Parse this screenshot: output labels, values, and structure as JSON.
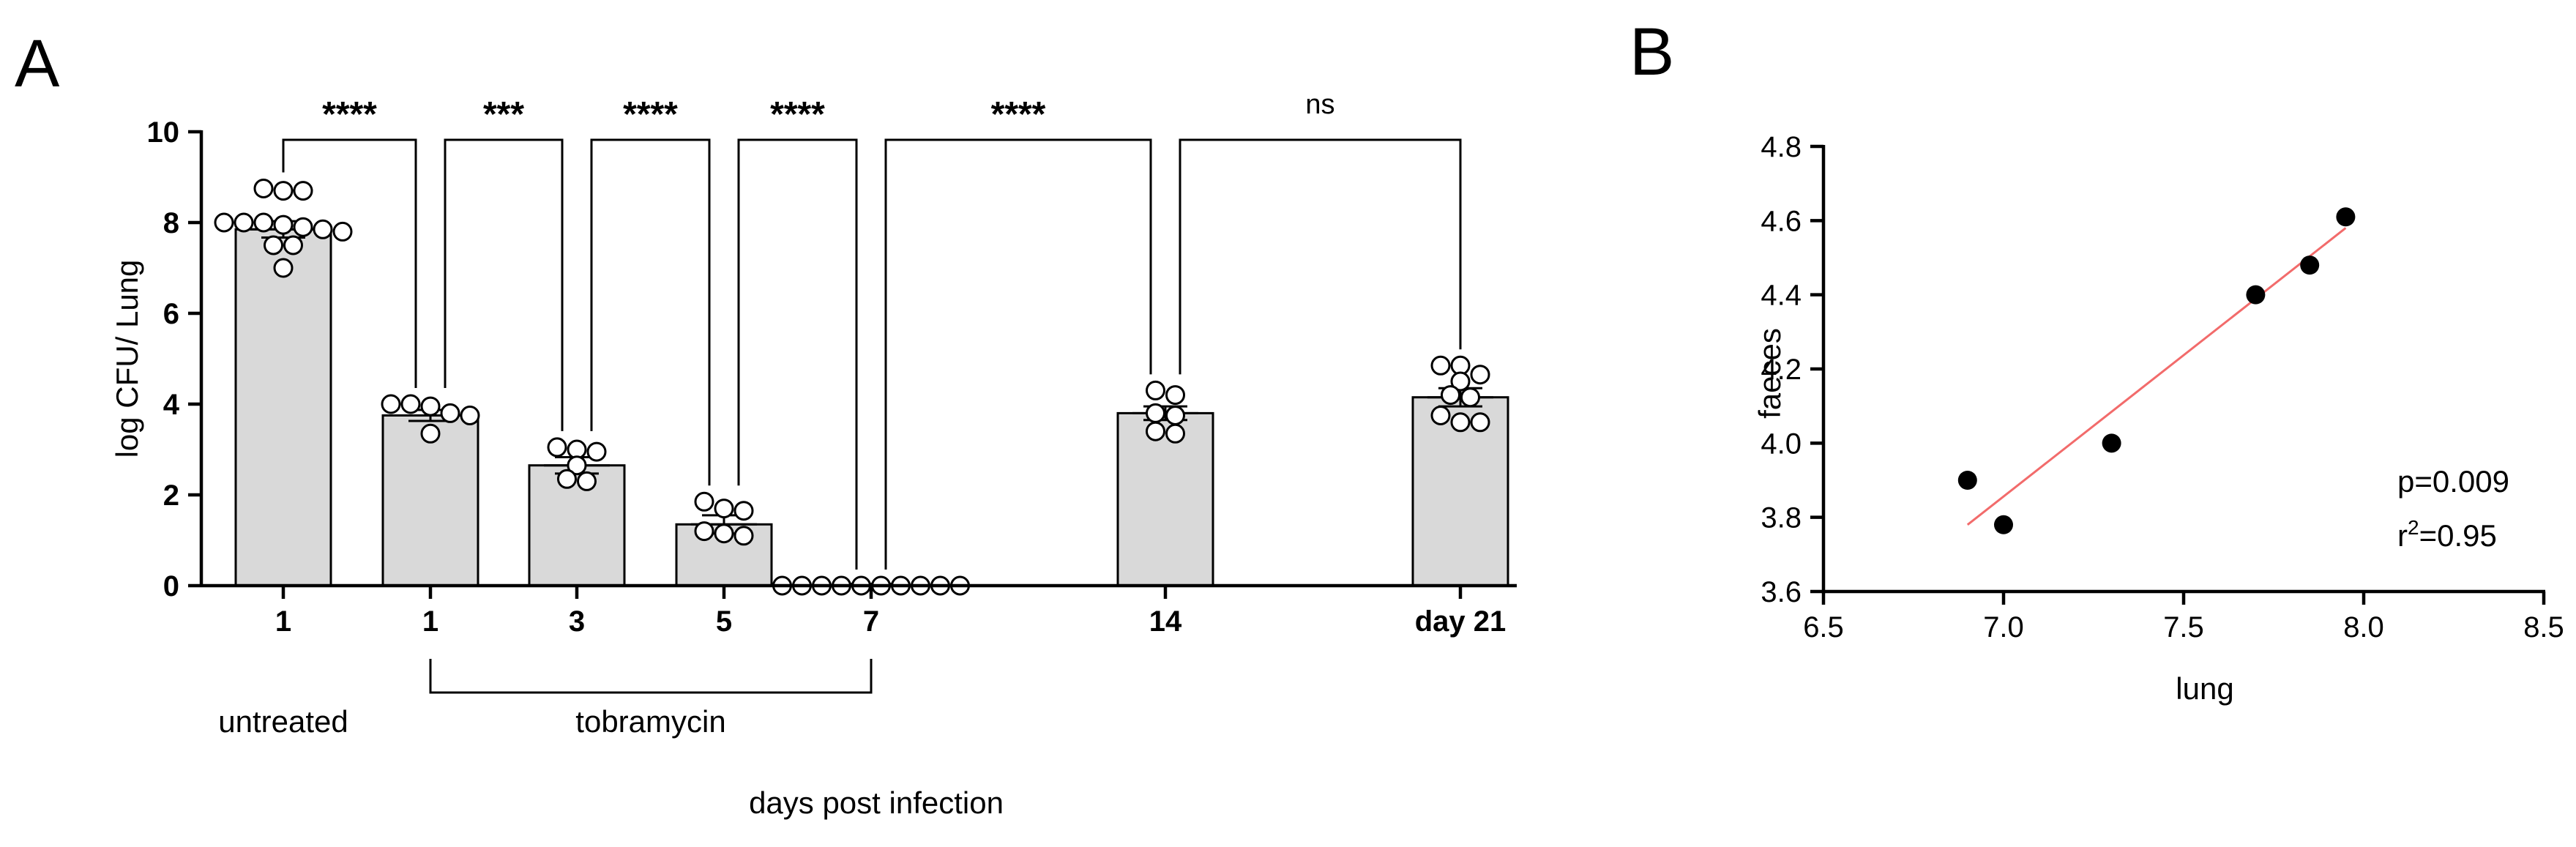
{
  "panels": {
    "a": {
      "letter": "A"
    },
    "b": {
      "letter": "B"
    }
  },
  "chart_data": [
    {
      "type": "bar",
      "ylabel": "log CFU/ Lung",
      "xlabel": "days post infection",
      "ylim": [
        0,
        10
      ],
      "yticks": [
        "0",
        "2",
        "4",
        "6",
        "8",
        "10"
      ],
      "bar_color": "#d9d9d9",
      "categories": [
        "1",
        "1",
        "3",
        "5",
        "7",
        "14",
        "day 21"
      ],
      "means": [
        7.85,
        3.75,
        2.65,
        1.35,
        0,
        3.8,
        4.15
      ],
      "sem": [
        0.18,
        0.12,
        0.18,
        0.2,
        0.04,
        0.15,
        0.2
      ],
      "points": [
        [
          8.75,
          8.7,
          8.7,
          8.0,
          8.0,
          8.0,
          7.95,
          7.9,
          7.85,
          7.8,
          7.5,
          7.5,
          7.0
        ],
        [
          4.0,
          4.0,
          3.95,
          3.8,
          3.75,
          3.35
        ],
        [
          3.05,
          3.0,
          2.95,
          2.65,
          2.35,
          2.3
        ],
        [
          1.85,
          1.7,
          1.65,
          1.2,
          1.15,
          1.1
        ],
        [
          0,
          0,
          0,
          0,
          0,
          0,
          0,
          0,
          0,
          0
        ],
        [
          4.3,
          4.2,
          3.8,
          3.75,
          3.4,
          3.35
        ],
        [
          4.85,
          4.85,
          4.65,
          4.5,
          4.2,
          4.15,
          3.75,
          3.6,
          3.6
        ]
      ],
      "groups": [
        {
          "label": "untreated",
          "from": 0,
          "to": 0
        },
        {
          "label": "tobramycin",
          "from": 1,
          "to": 4
        }
      ],
      "comparisons": [
        {
          "from": 0,
          "to": 1,
          "label": "****"
        },
        {
          "from": 1,
          "to": 2,
          "label": "***"
        },
        {
          "from": 2,
          "to": 3,
          "label": "****"
        },
        {
          "from": 3,
          "to": 4,
          "label": "****"
        },
        {
          "from": 4,
          "to": 5,
          "label": "****"
        },
        {
          "from": 5,
          "to": 6,
          "label": "ns"
        }
      ]
    },
    {
      "type": "scatter",
      "xlabel": "lung",
      "ylabel": "faeces",
      "xlim": [
        6.5,
        8.5
      ],
      "ylim": [
        3.6,
        4.8
      ],
      "xticks": [
        "6.5",
        "7.0",
        "7.5",
        "8.0",
        "8.5"
      ],
      "yticks": [
        "3.6",
        "3.8",
        "4.0",
        "4.2",
        "4.4",
        "4.6",
        "4.8"
      ],
      "points": [
        {
          "x": 6.9,
          "y": 3.9
        },
        {
          "x": 7.0,
          "y": 3.78
        },
        {
          "x": 7.3,
          "y": 4.0
        },
        {
          "x": 7.7,
          "y": 4.4
        },
        {
          "x": 7.85,
          "y": 4.48
        },
        {
          "x": 7.95,
          "y": 4.61
        }
      ],
      "regression": {
        "x0": 6.9,
        "y0": 3.78,
        "x1": 7.95,
        "y1": 4.58,
        "color": "#f26b6b"
      },
      "annotation": {
        "p": "p=0.009",
        "r_prefix": "r",
        "r_exp": "2",
        "r_value": "=0.95"
      }
    }
  ]
}
